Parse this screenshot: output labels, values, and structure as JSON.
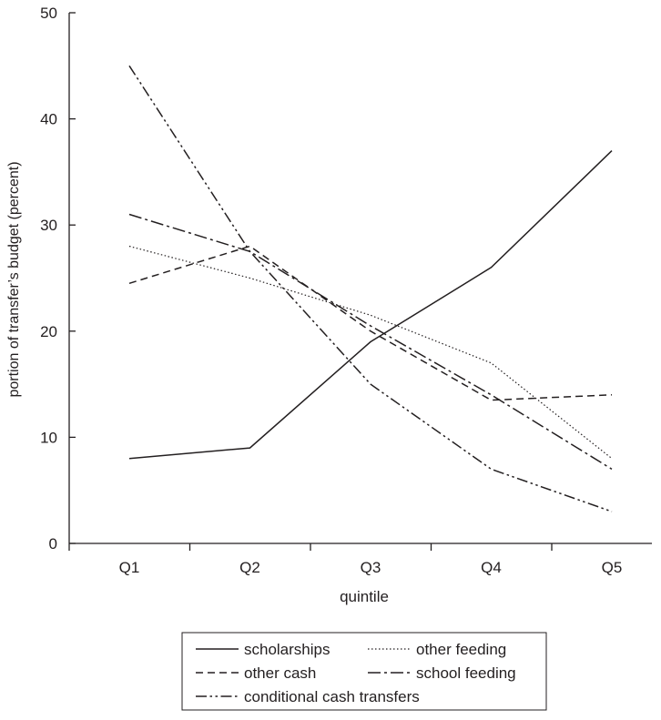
{
  "chart_data": {
    "type": "line",
    "title": "",
    "xlabel": "quintile",
    "ylabel": "portion of transfer’s budget (percent)",
    "categories": [
      "Q1",
      "Q2",
      "Q3",
      "Q4",
      "Q5"
    ],
    "ylim": [
      0,
      50
    ],
    "yticks": [
      0,
      10,
      20,
      30,
      40,
      50
    ],
    "grid": false,
    "legend_position": "bottom",
    "series": [
      {
        "name": "scholarships",
        "style": "solid",
        "values": [
          8,
          9,
          19,
          26,
          37
        ]
      },
      {
        "name": "other feeding",
        "style": "dotted",
        "values": [
          28,
          25,
          21.5,
          17,
          8
        ]
      },
      {
        "name": "other cash",
        "style": "dashed",
        "values": [
          24.5,
          28,
          20,
          13.5,
          14
        ]
      },
      {
        "name": "school feeding",
        "style": "dash-dot",
        "values": [
          31,
          27.5,
          20.5,
          14,
          7
        ]
      },
      {
        "name": "conditional cash transfers",
        "style": "dash-dot-dot",
        "values": [
          45,
          27.5,
          15,
          7,
          3
        ]
      }
    ]
  },
  "colors": {
    "ink": "#231f20",
    "background": "#ffffff"
  }
}
